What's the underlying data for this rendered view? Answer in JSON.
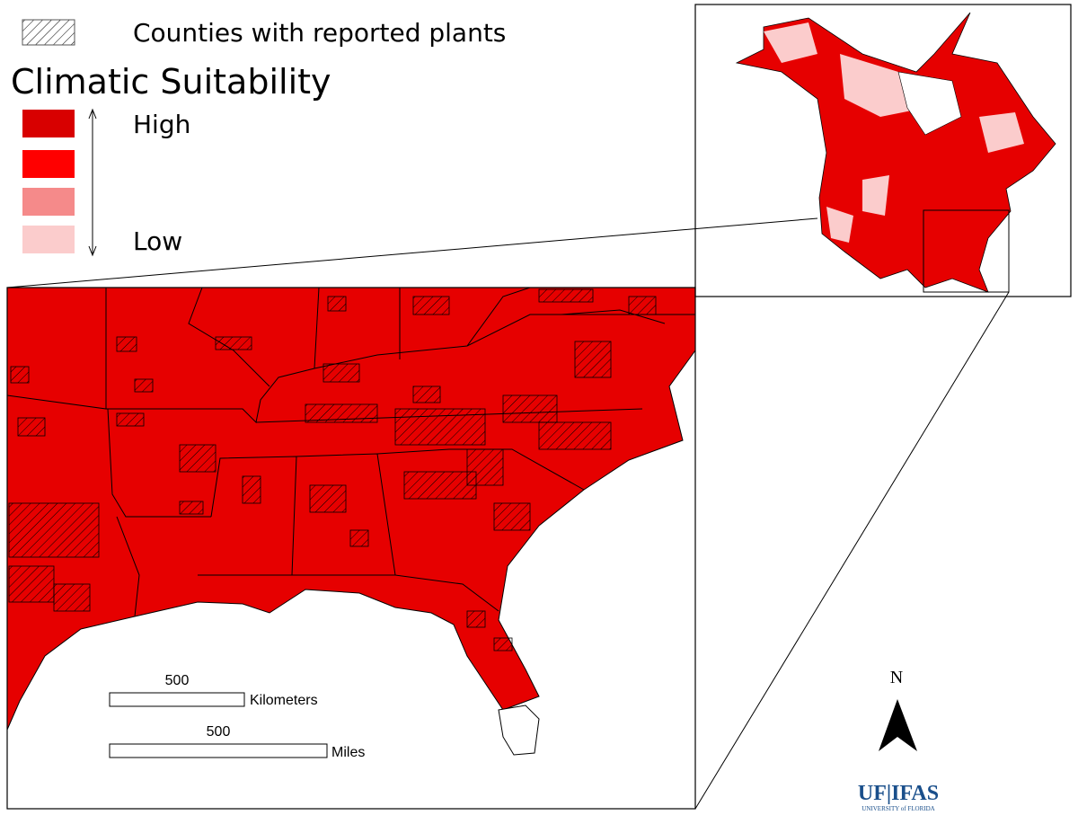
{
  "legend": {
    "hatch_label": "Counties with reported plants",
    "title": "Climatic Suitability",
    "high": "High",
    "low": "Low"
  },
  "scale_bars": [
    {
      "distance": "500",
      "unit": "Kilometers"
    },
    {
      "distance": "500",
      "unit": "Miles"
    }
  ],
  "north": "N",
  "logo": {
    "name": "UF|IFAS",
    "subtitle": "UNIVERSITY of FLORIDA"
  }
}
